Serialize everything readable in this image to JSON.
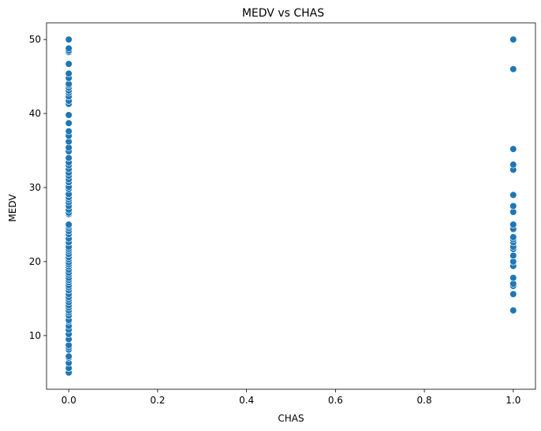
{
  "chart_data": {
    "type": "scatter",
    "title": "MEDV vs CHAS",
    "xlabel": "CHAS",
    "ylabel": "MEDV",
    "xlim": [
      -0.05,
      1.05
    ],
    "ylim": [
      2.75,
      52.25
    ],
    "xticks": [
      0.0,
      0.2,
      0.4,
      0.6,
      0.8,
      1.0
    ],
    "xtick_labels": [
      "0.0",
      "0.2",
      "0.4",
      "0.6",
      "0.8",
      "1.0"
    ],
    "yticks": [
      10,
      20,
      30,
      40,
      50
    ],
    "ytick_labels": [
      "10",
      "20",
      "30",
      "40",
      "50"
    ],
    "grid": false,
    "legend": "none",
    "marker_color": "#1f77b4",
    "series": [
      {
        "values_x0": {
          "x": 0,
          "y": [
            5.0,
            5.6,
            6.3,
            7.0,
            7.2,
            8.1,
            8.4,
            8.7,
            9.5,
            10.2,
            10.8,
            11.3,
            11.9,
            12.1,
            12.7,
            13.1,
            13.4,
            13.8,
            14.1,
            14.5,
            14.9,
            15.2,
            15.6,
            16.1,
            16.5,
            16.8,
            17.2,
            17.5,
            17.8,
            18.2,
            18.5,
            18.9,
            19.3,
            19.6,
            19.9,
            20.3,
            20.6,
            21.0,
            21.4,
            21.7,
            22.0,
            22.6,
            23.1,
            23.7,
            24.1,
            24.5,
            24.8,
            25.0,
            26.4,
            26.6,
            27.0,
            27.5,
            28.0,
            28.4,
            28.7,
            29.1,
            29.8,
            30.1,
            30.7,
            31.1,
            31.6,
            32.0,
            32.5,
            33.0,
            33.4,
            34.0,
            34.9,
            35.4,
            36.2,
            37.0,
            37.6,
            38.7,
            39.8,
            41.3,
            41.7,
            42.3,
            42.8,
            43.1,
            43.5,
            43.8,
            44.0,
            44.8,
            45.4,
            46.7,
            48.3,
            48.5,
            48.8,
            50.0
          ]
        }
      },
      {
        "values_x1": {
          "x": 1,
          "y": [
            13.4,
            15.6,
            16.7,
            17.0,
            17.8,
            19.4,
            20.0,
            20.8,
            21.7,
            22.0,
            22.6,
            23.0,
            23.3,
            24.4,
            25.0,
            26.7,
            27.5,
            29.0,
            32.4,
            33.1,
            35.2,
            46.0,
            50.0
          ]
        }
      }
    ]
  }
}
